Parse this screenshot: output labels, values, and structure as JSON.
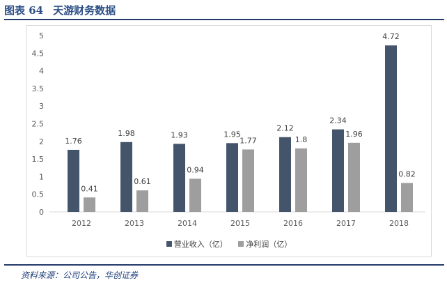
{
  "figure": {
    "number": "图表 64",
    "title": "天游财务数据",
    "source": "资料来源：公司公告，华创证券"
  },
  "colors": {
    "series1": "#44546a",
    "series2": "#9e9e9e",
    "title": "#2e4f86",
    "rule": "#243a6b"
  },
  "chart_data": {
    "type": "bar",
    "title": "",
    "xlabel": "",
    "ylabel": "",
    "categories": [
      "2012",
      "2013",
      "2014",
      "2015",
      "2016",
      "2017",
      "2018"
    ],
    "series": [
      {
        "name": "营业收入（亿）",
        "values": [
          1.76,
          1.98,
          1.93,
          1.95,
          2.12,
          2.34,
          4.72
        ],
        "labels": [
          "1.76",
          "1.98",
          "1.93",
          "1.95",
          "2.12",
          "2.34",
          "4.72"
        ]
      },
      {
        "name": "净利润（亿）",
        "values": [
          0.41,
          0.61,
          0.94,
          1.77,
          1.8,
          1.96,
          0.82
        ],
        "labels": [
          "0.41",
          "0.61",
          "0.94",
          "1.77",
          "1.8",
          "1.96",
          "0.82"
        ]
      }
    ],
    "ylim": [
      0,
      5
    ],
    "yticks": [
      "0",
      "0.5",
      "1",
      "1.5",
      "2",
      "2.5",
      "3",
      "3.5",
      "4",
      "4.5",
      "5"
    ],
    "grid": false,
    "legend": "bottom"
  }
}
